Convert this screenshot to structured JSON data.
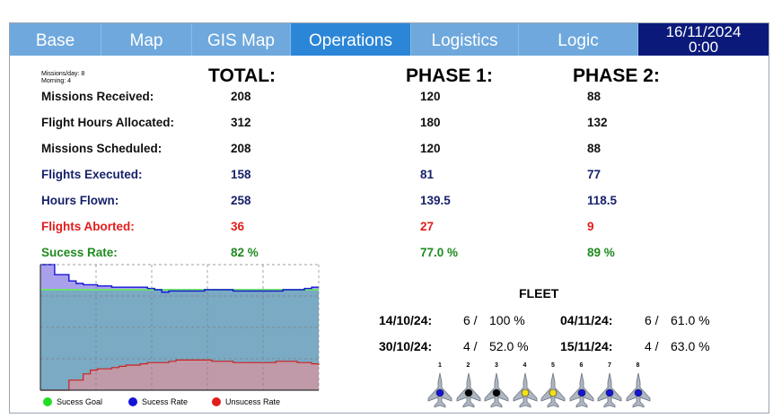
{
  "nav": {
    "tabs": [
      "Base",
      "Map",
      "GIS Map",
      "Operations",
      "Logistics",
      "Logic"
    ],
    "active": "Operations",
    "date": "16/11/2024",
    "time": "0:00"
  },
  "info": {
    "missions_per_day": "Missions/day: 8",
    "morning": "Morning: 4"
  },
  "headers": {
    "total": "TOTAL:",
    "phase1": "PHASE 1:",
    "phase2": "PHASE 2:"
  },
  "rows": [
    {
      "label": "Missions Received:",
      "total": "208",
      "p1": "120",
      "p2": "88",
      "color": "black"
    },
    {
      "label": "Flight Hours Allocated:",
      "total": "312",
      "p1": "180",
      "p2": "132",
      "color": "black"
    },
    {
      "label": "Missions Scheduled:",
      "total": "208",
      "p1": "120",
      "p2": "88",
      "color": "black"
    },
    {
      "label": "Flights Executed:",
      "total": "158",
      "p1": "81",
      "p2": "77",
      "color": "navy"
    },
    {
      "label": "Hours Flown:",
      "total": "258",
      "p1": "139.5",
      "p2": "118.5",
      "color": "navy"
    },
    {
      "label": "Flights Aborted:",
      "total": "36",
      "p1": "27",
      "p2": "9",
      "color": "red"
    },
    {
      "label": "Sucess Rate:",
      "total": "82 %",
      "p1": "77.0 %",
      "p2": "89 %",
      "color": "green"
    }
  ],
  "fleet": {
    "title": "FLEET",
    "entries": [
      {
        "date": "14/10/24:",
        "count": "6 /",
        "pct": "100 %"
      },
      {
        "date": "04/11/24:",
        "count": "6 /",
        "pct": "61.0 %"
      },
      {
        "date": "30/10/24:",
        "count": "4 /",
        "pct": "52.0 %"
      },
      {
        "date": "15/11/24:",
        "count": "4 /",
        "pct": "63.0 %"
      }
    ],
    "aircraft": [
      {
        "num": "1",
        "status": "#1515d6"
      },
      {
        "num": "2",
        "status": "#000000"
      },
      {
        "num": "3",
        "status": "#000000"
      },
      {
        "num": "4",
        "status": "#f2e019"
      },
      {
        "num": "5",
        "status": "#f2e019"
      },
      {
        "num": "6",
        "status": "#1515d6"
      },
      {
        "num": "7",
        "status": "#1515d6"
      },
      {
        "num": "8",
        "status": "#1515d6"
      }
    ]
  },
  "legend": [
    {
      "label": "Sucess Goal",
      "color": "#22dd22"
    },
    {
      "label": "Sucess Rate",
      "color": "#1515d6"
    },
    {
      "label": "Unsucess Rate",
      "color": "#e31c1c"
    }
  ],
  "chart_data": {
    "type": "area",
    "title": "",
    "xlabel": "",
    "ylabel": "",
    "ylim": [
      0,
      100
    ],
    "x": [
      0,
      1,
      2,
      3,
      4,
      5,
      6,
      7,
      8,
      9,
      10,
      11,
      12,
      13,
      14,
      15,
      16,
      17,
      18,
      19,
      20,
      21,
      22,
      23,
      24,
      25,
      26,
      27,
      28,
      29,
      30,
      31,
      32,
      33,
      34,
      35,
      36,
      37,
      38,
      39
    ],
    "series": [
      {
        "name": "Sucess Goal",
        "values": [
          80,
          80,
          80,
          80,
          80,
          80,
          80,
          80,
          80,
          80,
          80,
          80,
          80,
          80,
          80,
          80,
          80,
          80,
          80,
          80,
          80,
          80,
          80,
          80,
          80,
          80,
          80,
          80,
          80,
          80,
          80,
          80,
          80,
          80,
          80,
          80,
          80,
          80,
          80,
          80
        ]
      },
      {
        "name": "Sucess Rate",
        "values": [
          100,
          100,
          92,
          92,
          87,
          85,
          84,
          84,
          83,
          83,
          82,
          82,
          82,
          82,
          82,
          81,
          80,
          78,
          79,
          79,
          79,
          79,
          79,
          80,
          80,
          80,
          80,
          79,
          79,
          79,
          79,
          79,
          79,
          79,
          80,
          80,
          80,
          81,
          82,
          82
        ]
      },
      {
        "name": "Unsucess Rate",
        "values": [
          0,
          0,
          0,
          0,
          8,
          8,
          13,
          16,
          17,
          17,
          18,
          19,
          20,
          20,
          21,
          22,
          22,
          22,
          23,
          24,
          24,
          24,
          24,
          24,
          23,
          23,
          23,
          22,
          22,
          22,
          22,
          22,
          22,
          23,
          23,
          23,
          22,
          22,
          21,
          20
        ]
      }
    ],
    "grid": true
  }
}
